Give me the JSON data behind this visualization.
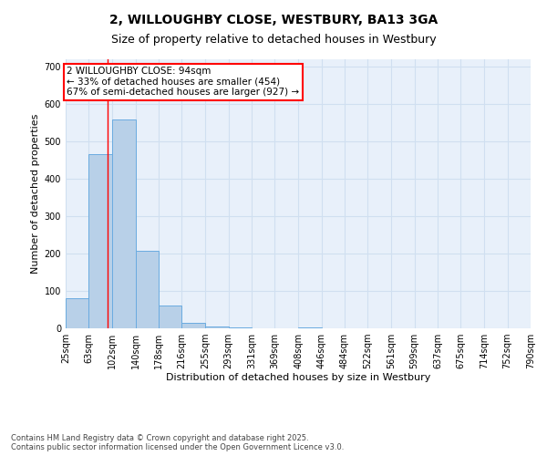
{
  "title_line1": "2, WILLOUGHBY CLOSE, WESTBURY, BA13 3GA",
  "title_line2": "Size of property relative to detached houses in Westbury",
  "xlabel": "Distribution of detached houses by size in Westbury",
  "ylabel": "Number of detached properties",
  "footer_line1": "Contains HM Land Registry data © Crown copyright and database right 2025.",
  "footer_line2": "Contains public sector information licensed under the Open Government Licence v3.0.",
  "annotation_line1": "2 WILLOUGHBY CLOSE: 94sqm",
  "annotation_line2": "← 33% of detached houses are smaller (454)",
  "annotation_line3": "67% of semi-detached houses are larger (927) →",
  "bar_heights": [
    80,
    465,
    560,
    207,
    60,
    15,
    5,
    3,
    0,
    0,
    3,
    0,
    0,
    0,
    0,
    0,
    0,
    0,
    0,
    0
  ],
  "bin_edges": [
    25,
    63,
    102,
    140,
    178,
    216,
    255,
    293,
    331,
    369,
    408,
    446,
    484,
    522,
    561,
    599,
    637,
    675,
    714,
    752,
    790
  ],
  "bar_color": "#b8d0e8",
  "bar_edge_color": "#6aabe0",
  "grid_color": "#d0dff0",
  "background_color": "#e8f0fa",
  "red_line_x": 94,
  "ylim": [
    0,
    720
  ],
  "yticks": [
    0,
    100,
    200,
    300,
    400,
    500,
    600,
    700
  ],
  "x_tick_labels": [
    "25sqm",
    "63sqm",
    "102sqm",
    "140sqm",
    "178sqm",
    "216sqm",
    "255sqm",
    "293sqm",
    "331sqm",
    "369sqm",
    "408sqm",
    "446sqm",
    "484sqm",
    "522sqm",
    "561sqm",
    "599sqm",
    "637sqm",
    "675sqm",
    "714sqm",
    "752sqm",
    "790sqm"
  ],
  "annotation_box_color": "white",
  "annotation_box_edge_color": "red",
  "red_line_color": "red",
  "title_fontsize": 10,
  "subtitle_fontsize": 9,
  "axis_label_fontsize": 8,
  "tick_fontsize": 7,
  "annotation_fontsize": 7.5,
  "footer_fontsize": 6
}
